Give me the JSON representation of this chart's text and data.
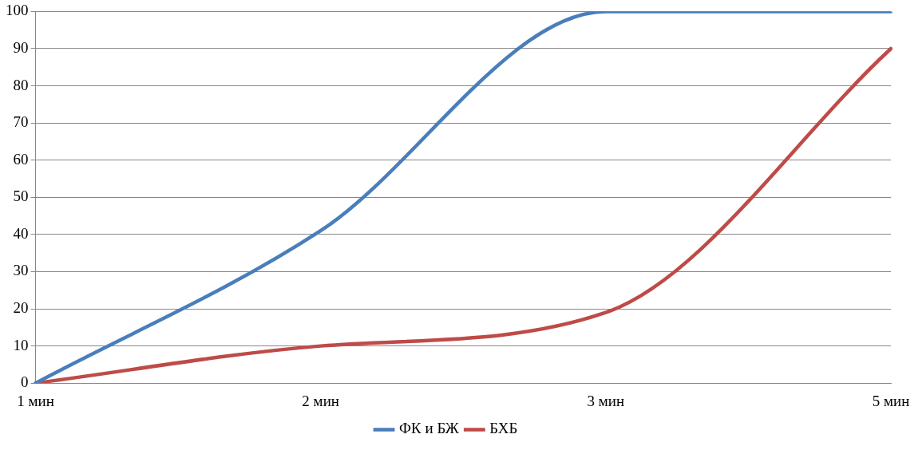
{
  "chart_data": {
    "type": "line",
    "categories": [
      "1 мин",
      "2 мин",
      "3 мин",
      "5 мин"
    ],
    "series": [
      {
        "name": "ФК и БЖ",
        "color": "#4a7ebb",
        "values": [
          0,
          41,
          100,
          100
        ]
      },
      {
        "name": "БХБ",
        "color": "#be4b48",
        "values": [
          0,
          10,
          19,
          90
        ]
      }
    ],
    "ylim": [
      0,
      100
    ],
    "yticks": [
      0,
      10,
      20,
      30,
      40,
      50,
      60,
      70,
      80,
      90,
      100
    ],
    "grid": "y",
    "legend": "bottom",
    "marker": "none",
    "line_style": "solid"
  }
}
